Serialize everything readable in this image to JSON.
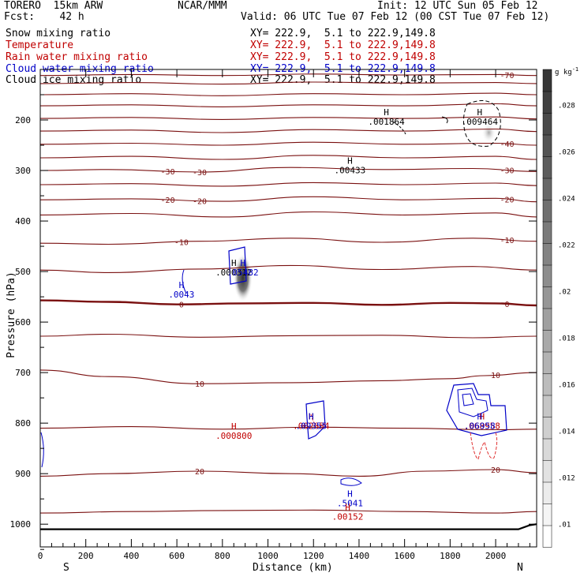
{
  "header": {
    "model": "TORERO  15km ARW",
    "fcst": "Fcst:    42 h",
    "org": "NCAR/MMM",
    "init": "Init: 12 UTC Sun 05 Feb 12",
    "valid": "Valid: 06 UTC Tue 07 Feb 12 (00 CST Tue 07 Feb 12)"
  },
  "legend": [
    {
      "name": "Snow mixing ratio",
      "color": "#000000",
      "xy": "XY= 222.9,  5.1 to 222.9,149.8"
    },
    {
      "name": "Temperature",
      "color": "#c00000",
      "xy": "XY= 222.9,  5.1 to 222.9,149.8"
    },
    {
      "name": "Rain water mixing ratio",
      "color": "#c00000",
      "xy": "XY= 222.9,  5.1 to 222.9,149.8"
    },
    {
      "name": "Cloud water mixing ratio",
      "color": "#0000c8",
      "xy": "XY= 222.9,  5.1 to 222.9,149.8"
    },
    {
      "name": "Cloud ice mixing ratio",
      "color": "#000000",
      "xy": "XY= 222.9,  5.1 to 222.9,149.8"
    }
  ],
  "colorbar": {
    "unit": "g kg",
    "unit_exp": "-1",
    "ticks": [
      ".01",
      ".012",
      ".014",
      ".016",
      ".018",
      ".02",
      ".022",
      ".024",
      ".026",
      ".028"
    ],
    "tick_values": [
      0.01,
      0.012,
      0.014,
      0.016,
      0.018,
      0.02,
      0.022,
      0.024,
      0.026,
      0.028
    ]
  },
  "chart_data": {
    "type": "cross-section contour",
    "xlabel": "Distance (km)",
    "ylabel": "Pressure (hPa)",
    "xlim": [
      0,
      2180
    ],
    "ylim": [
      1045,
      100
    ],
    "x_ticks": [
      0,
      200,
      400,
      600,
      800,
      1000,
      1200,
      1400,
      1600,
      1800,
      2000
    ],
    "y_ticks": [
      200,
      300,
      400,
      500,
      600,
      700,
      800,
      900,
      1000
    ],
    "left_end": "S",
    "right_end": "N",
    "isotherms": [
      {
        "value": -70,
        "label": "-70",
        "points": [
          [
            0,
            112
          ],
          [
            400,
            110
          ],
          [
            800,
            112
          ],
          [
            1200,
            109
          ],
          [
            1600,
            111
          ],
          [
            2000,
            110
          ],
          [
            2180,
            112
          ]
        ]
      },
      {
        "value": -65,
        "label": "",
        "points": [
          [
            0,
            128
          ],
          [
            400,
            126
          ],
          [
            800,
            129
          ],
          [
            1200,
            125
          ],
          [
            1600,
            127
          ],
          [
            2000,
            126
          ],
          [
            2180,
            128
          ]
        ]
      },
      {
        "value": -60,
        "label": "",
        "points": [
          [
            0,
            150
          ],
          [
            400,
            148
          ],
          [
            800,
            152
          ],
          [
            1200,
            148
          ],
          [
            1600,
            150
          ],
          [
            2000,
            147
          ],
          [
            2180,
            150
          ]
        ]
      },
      {
        "value": -55,
        "label": "",
        "points": [
          [
            0,
            172
          ],
          [
            400,
            170
          ],
          [
            800,
            174
          ],
          [
            1200,
            170
          ],
          [
            1600,
            172
          ],
          [
            2000,
            168
          ],
          [
            2180,
            172
          ]
        ]
      },
      {
        "value": -50,
        "label": "",
        "points": [
          [
            0,
            197
          ],
          [
            400,
            195
          ],
          [
            800,
            199
          ],
          [
            1200,
            195
          ],
          [
            1600,
            197
          ],
          [
            2000,
            194
          ],
          [
            2180,
            198
          ]
        ]
      },
      {
        "value": -45,
        "label": "",
        "points": [
          [
            0,
            222
          ],
          [
            400,
            220
          ],
          [
            800,
            225
          ],
          [
            1200,
            219
          ],
          [
            1600,
            222
          ],
          [
            2000,
            218
          ],
          [
            2180,
            223
          ]
        ]
      },
      {
        "value": -40,
        "label": "-40",
        "points": [
          [
            0,
            248
          ],
          [
            400,
            246
          ],
          [
            800,
            250
          ],
          [
            1200,
            244
          ],
          [
            1600,
            248
          ],
          [
            2000,
            246
          ],
          [
            2180,
            250
          ]
        ]
      },
      {
        "value": -35,
        "label": "",
        "points": [
          [
            0,
            275
          ],
          [
            400,
            272
          ],
          [
            800,
            278
          ],
          [
            1200,
            270
          ],
          [
            1600,
            275
          ],
          [
            2000,
            272
          ],
          [
            2180,
            278
          ]
        ]
      },
      {
        "value": -30,
        "label": "-30",
        "points": [
          [
            0,
            300
          ],
          [
            300,
            298
          ],
          [
            700,
            303
          ],
          [
            1100,
            294
          ],
          [
            1500,
            298
          ],
          [
            1900,
            296
          ],
          [
            2180,
            302
          ]
        ]
      },
      {
        "value": -25,
        "label": "",
        "points": [
          [
            0,
            328
          ],
          [
            400,
            326
          ],
          [
            800,
            331
          ],
          [
            1200,
            324
          ],
          [
            1600,
            328
          ],
          [
            2000,
            325
          ],
          [
            2180,
            330
          ]
        ]
      },
      {
        "value": -20,
        "label": "-20",
        "points": [
          [
            0,
            358
          ],
          [
            400,
            356
          ],
          [
            800,
            361
          ],
          [
            1200,
            352
          ],
          [
            1600,
            358
          ],
          [
            2000,
            355
          ],
          [
            2180,
            362
          ]
        ]
      },
      {
        "value": -15,
        "label": "",
        "points": [
          [
            0,
            388
          ],
          [
            400,
            385
          ],
          [
            800,
            392
          ],
          [
            1200,
            382
          ],
          [
            1600,
            388
          ],
          [
            2000,
            384
          ],
          [
            2180,
            392
          ]
        ]
      },
      {
        "value": -10,
        "label": "-10",
        "points": [
          [
            0,
            444
          ],
          [
            300,
            446
          ],
          [
            700,
            440
          ],
          [
            1100,
            434
          ],
          [
            1500,
            442
          ],
          [
            1900,
            434
          ],
          [
            2180,
            440
          ]
        ]
      },
      {
        "value": -5,
        "label": "",
        "points": [
          [
            0,
            497
          ],
          [
            300,
            502
          ],
          [
            700,
            495
          ],
          [
            1100,
            488
          ],
          [
            1500,
            496
          ],
          [
            1900,
            490
          ],
          [
            2180,
            497
          ]
        ]
      },
      {
        "value": 0,
        "label": "0",
        "points": [
          [
            0,
            557
          ],
          [
            300,
            560
          ],
          [
            600,
            565
          ],
          [
            900,
            563
          ],
          [
            1200,
            562
          ],
          [
            1500,
            566
          ],
          [
            1800,
            562
          ],
          [
            2000,
            563
          ],
          [
            2180,
            567
          ]
        ]
      },
      {
        "value": 5,
        "label": "",
        "points": [
          [
            0,
            628
          ],
          [
            300,
            624
          ],
          [
            700,
            630
          ],
          [
            1100,
            627
          ],
          [
            1500,
            626
          ],
          [
            1900,
            631
          ],
          [
            2180,
            628
          ]
        ]
      },
      {
        "value": 10,
        "label": "10",
        "points": [
          [
            0,
            695
          ],
          [
            300,
            708
          ],
          [
            700,
            722
          ],
          [
            1100,
            720
          ],
          [
            1500,
            716
          ],
          [
            1800,
            712
          ],
          [
            1950,
            706
          ],
          [
            2180,
            700
          ]
        ]
      },
      {
        "value": 15,
        "label": "",
        "points": [
          [
            0,
            810
          ],
          [
            400,
            807
          ],
          [
            800,
            812
          ],
          [
            1200,
            808
          ],
          [
            1600,
            810
          ],
          [
            2000,
            813
          ],
          [
            2180,
            812
          ]
        ]
      },
      {
        "value": 20,
        "label": "20",
        "points": [
          [
            0,
            905
          ],
          [
            300,
            900
          ],
          [
            700,
            895
          ],
          [
            1100,
            900
          ],
          [
            1400,
            905
          ],
          [
            1700,
            895
          ],
          [
            2000,
            892
          ],
          [
            2180,
            898
          ]
        ]
      },
      {
        "value": 25,
        "label": "",
        "points": [
          [
            0,
            978
          ],
          [
            400,
            975
          ],
          [
            800,
            973
          ],
          [
            1200,
            972
          ],
          [
            1600,
            975
          ],
          [
            2000,
            978
          ],
          [
            2180,
            975
          ]
        ]
      }
    ],
    "ground": {
      "points": [
        [
          0,
          1010
        ],
        [
          2100,
          1010
        ],
        [
          2150,
          1002
        ],
        [
          2180,
          1000
        ]
      ]
    },
    "maxima": [
      {
        "field": "cloud ice",
        "marker": "H",
        "label": ".001864",
        "x": 1520,
        "p": 200,
        "color": "#000000"
      },
      {
        "field": "cloud ice",
        "marker": "H",
        "label": ".009464",
        "x": 1930,
        "p": 200,
        "color": "#000000"
      },
      {
        "field": "cloud ice",
        "marker": "H",
        "label": ".00433",
        "x": 1360,
        "p": 296,
        "color": "#000000"
      },
      {
        "field": "snow",
        "marker": "H",
        "label": ".000312",
        "x": 850,
        "p": 498,
        "color": "#000000"
      },
      {
        "field": "cloud water",
        "marker": "H",
        "label": ".05482",
        "x": 890,
        "p": 498,
        "color": "#0000c8"
      },
      {
        "field": "cloud water",
        "marker": "H",
        "label": ".0043",
        "x": 620,
        "p": 542,
        "color": "#0000c8"
      },
      {
        "field": "rain water",
        "marker": "H",
        "label": ".000800",
        "x": 850,
        "p": 822,
        "color": "#c00000"
      },
      {
        "field": "rain water",
        "marker": "H",
        "label": ".002654",
        "x": 1190,
        "p": 802,
        "color": "#c00000"
      },
      {
        "field": "cloud water",
        "marker": "H",
        "label": ".09355",
        "x": 1190,
        "p": 802,
        "color": "#0000c8"
      },
      {
        "field": "rain water",
        "marker": "H",
        "label": ".068958",
        "x": 1940,
        "p": 802,
        "color": "#c00000"
      },
      {
        "field": "cloud water",
        "marker": "H",
        "label": ".06958",
        "x": 1930,
        "p": 802,
        "color": "#0000c8"
      },
      {
        "field": "cloud water",
        "marker": "H",
        "label": ".5041",
        "x": 1360,
        "p": 955,
        "color": "#0000c8"
      },
      {
        "field": "rain water",
        "marker": "H",
        "label": ".00152",
        "x": 1350,
        "p": 982,
        "color": "#c00000"
      }
    ],
    "snow_shading": [
      {
        "x": 890,
        "p_top": 465,
        "p_bottom": 560,
        "peak": 0.026
      },
      {
        "x": 1970,
        "p_top": 205,
        "p_bottom": 245,
        "peak": 0.012
      }
    ]
  }
}
